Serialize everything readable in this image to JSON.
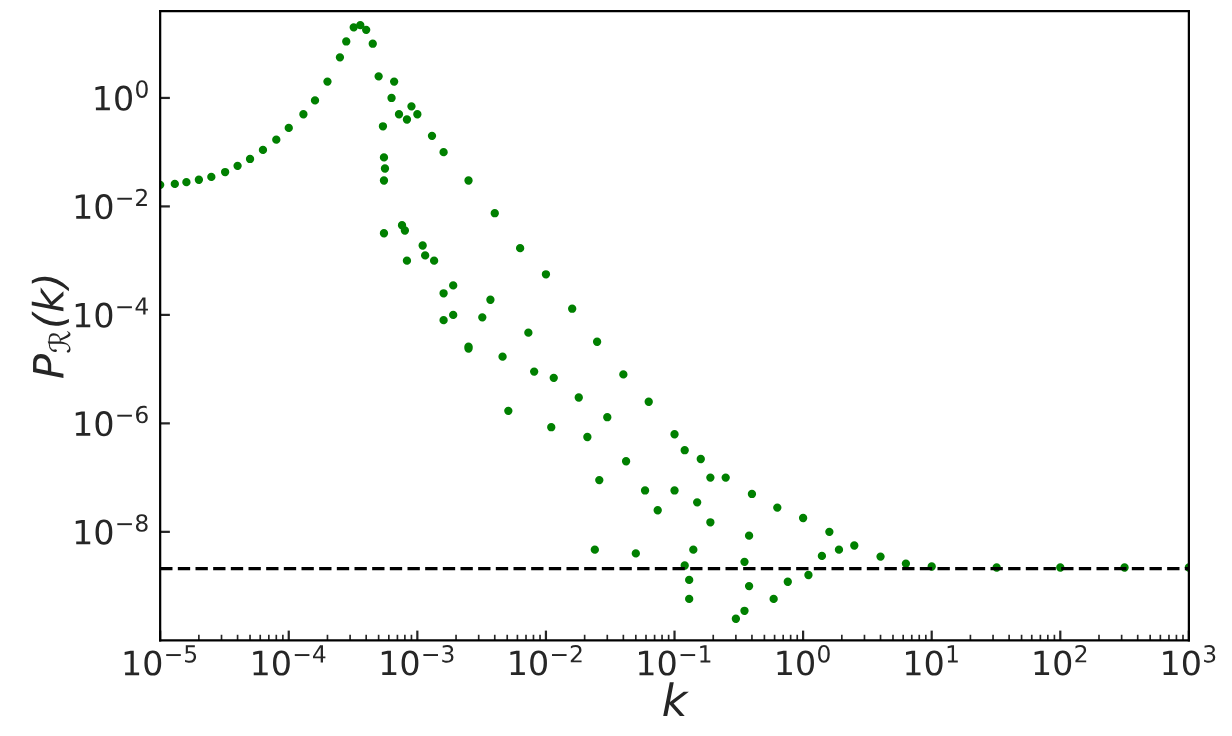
{
  "chart_data": {
    "type": "scatter",
    "xlabel": "k",
    "ylabel": "P$_{ℛ}$(k)",
    "log": "xy",
    "marker": "circle",
    "x": [
      1e-05,
      1.3e-05,
      1.6e-05,
      2e-05,
      2.5e-05,
      3.2e-05,
      4e-05,
      5e-05,
      6.3e-05,
      8e-05,
      0.0001,
      0.00013,
      0.00016,
      0.0002,
      0.00025,
      0.00028,
      0.00032,
      0.00036,
      0.0004,
      0.00045,
      0.0005,
      0.00054,
      0.00056,
      0.00063,
      0.00066,
      0.00072,
      0.00076,
      0.00083,
      0.0009,
      0.001,
      0.0013,
      0.0016,
      0.0025,
      0.004,
      0.0063,
      0.01,
      0.016,
      0.025,
      0.04,
      0.063,
      0.1,
      0.16,
      0.25,
      0.4,
      0.63,
      1,
      1.6,
      2.5,
      4,
      6.3,
      10,
      32,
      100,
      316,
      1000,
      0.00055,
      0.00055,
      0.00055,
      0.00083,
      0.0008,
      0.0011,
      0.00115,
      0.00135,
      0.0016,
      0.0016,
      0.0019,
      0.0019,
      0.0025,
      0.0025,
      0.0032,
      0.0037,
      0.0046,
      0.0051,
      0.0073,
      0.0081,
      0.011,
      0.0115,
      0.018,
      0.021,
      0.024,
      0.026,
      0.03,
      0.042,
      0.05,
      0.059,
      0.074,
      0.1,
      0.12,
      0.12,
      0.13,
      0.13,
      0.14,
      0.15,
      0.19,
      0.19,
      0.3,
      0.35,
      0.35,
      0.38,
      0.38,
      0.59,
      0.76,
      1.1,
      1.4,
      1.9
    ],
    "values": [
      0.025,
      0.026,
      0.028,
      0.031,
      0.035,
      0.043,
      0.056,
      0.075,
      0.11,
      0.17,
      0.28,
      0.5,
      0.9,
      2.0,
      5.6,
      11,
      20,
      22,
      18,
      10,
      2.5,
      0.3,
      0.05,
      1.0,
      2.0,
      0.5,
      0.0045,
      0.4,
      0.7,
      0.5,
      0.2,
      0.1,
      0.03,
      0.0075,
      0.0017,
      0.00056,
      0.00013,
      3.2e-05,
      8e-06,
      2.5e-06,
      6.3e-07,
      2.2e-07,
      1e-07,
      5e-08,
      2.8e-08,
      1.8e-08,
      1e-08,
      5.6e-09,
      3.5e-09,
      2.6e-09,
      2.3e-09,
      2.2e-09,
      2.2e-09,
      2.2e-09,
      2.2e-09,
      0.0032,
      0.08,
      0.03,
      0.001,
      0.0036,
      0.0019,
      0.00125,
      0.001,
      8e-05,
      0.00025,
      0.00035,
      0.0001,
      2.6e-05,
      2.4e-05,
      9e-05,
      0.00019,
      1.7e-05,
      1.7e-06,
      4.7e-05,
      9e-06,
      8.5e-07,
      6.9e-06,
      3e-06,
      5.6e-07,
      4.7e-09,
      9e-08,
      1.3e-06,
      2e-07,
      4e-09,
      5.8e-08,
      2.5e-08,
      5.8e-08,
      3.2e-07,
      2.4e-09,
      1.3e-09,
      5.8e-10,
      4.7e-09,
      3.5e-08,
      1.5e-08,
      1e-07,
      2.5e-10,
      3.5e-10,
      2.8e-09,
      1e-09,
      8.5e-09,
      5.8e-10,
      1.2e-09,
      1.6e-09,
      3.6e-09,
      4.7e-09
    ],
    "color": "#008000",
    "xlim": [
      1e-05,
      1000
    ],
    "ylim": [
      1e-10,
      40
    ],
    "xticks": [
      {
        "value": 1e-05,
        "label": "10$^{−5}$"
      },
      {
        "value": 0.0001,
        "label": "10$^{−4}$"
      },
      {
        "value": 0.001,
        "label": "10$^{−3}$"
      },
      {
        "value": 0.01,
        "label": "10$^{−2}$"
      },
      {
        "value": 0.1,
        "label": "10$^{−1}$"
      },
      {
        "value": 1,
        "label": "10$^{0}$"
      },
      {
        "value": 10,
        "label": "10$^{1}$"
      },
      {
        "value": 100,
        "label": "10$^{2}$"
      },
      {
        "value": 1000,
        "label": "10$^{3}$"
      }
    ],
    "yticks": [
      {
        "value": 1e-08,
        "label": "10$^{−8}$"
      },
      {
        "value": 1e-06,
        "label": "10$^{−6}$"
      },
      {
        "value": 0.0001,
        "label": "10$^{−4}$"
      },
      {
        "value": 0.01,
        "label": "10$^{−2}$"
      },
      {
        "value": 1,
        "label": "10$^{0}$"
      }
    ],
    "ref_lines": [
      {
        "axis": "y",
        "value": 2.1e-09,
        "color": "#000000",
        "line_style": "dashed"
      }
    ]
  }
}
